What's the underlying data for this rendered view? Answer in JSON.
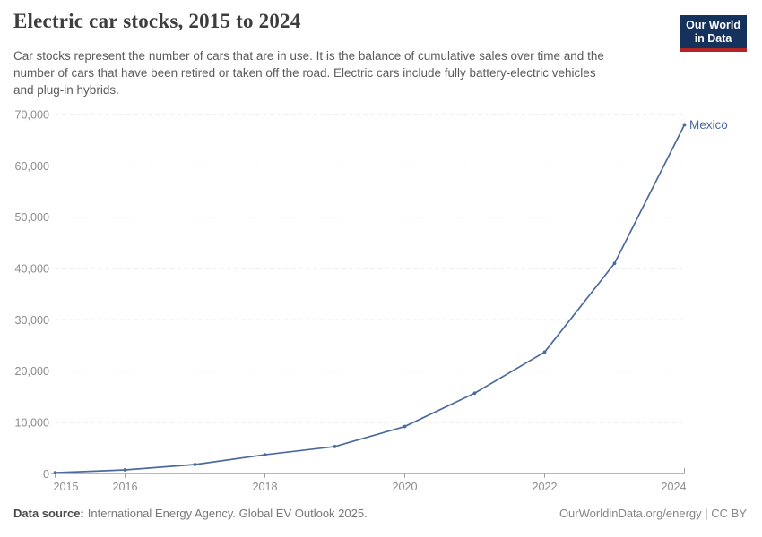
{
  "header": {
    "title": "Electric car stocks, 2015 to 2024",
    "subtitle_lines": [
      "Car stocks represent the number of cars that are in use. It is the balance of cumulative sales over time and the",
      "number of cars that have been retired or taken off the road. Electric cars include fully battery-electric vehicles",
      "and plug-in hybrids."
    ],
    "logo": {
      "line1": "Our World",
      "line2": "in Data"
    }
  },
  "chart_data": {
    "type": "line",
    "title": "Electric car stocks, 2015 to 2024",
    "x": [
      2015,
      2016,
      2017,
      2018,
      2019,
      2020,
      2021,
      2022,
      2023,
      2024
    ],
    "series": [
      {
        "name": "Mexico",
        "color": "#4C6A9C",
        "values": [
          200,
          750,
          1800,
          3700,
          5300,
          9200,
          15700,
          23700,
          41000,
          68000
        ]
      }
    ],
    "xlabel": "",
    "ylabel": "",
    "xlim": [
      2015,
      2024
    ],
    "ylim": [
      0,
      70000
    ],
    "yticks": [
      0,
      10000,
      20000,
      30000,
      40000,
      50000,
      60000,
      70000
    ],
    "ytick_labels": [
      "0",
      "10,000",
      "20,000",
      "30,000",
      "40,000",
      "50,000",
      "60,000",
      "70,000"
    ],
    "xtick_years": [
      2015,
      2016,
      2018,
      2020,
      2022,
      2024
    ],
    "grid": "horizontal-dashed",
    "legend_position": "end-of-line-label",
    "entity_label": "Mexico"
  },
  "footer": {
    "datasource_label": "Data source:",
    "datasource_text": "International Energy Agency. Global EV Outlook 2025.",
    "rights": "OurWorldinData.org/energy | CC BY"
  },
  "colors": {
    "series_line": "#4C6A9C",
    "logo_navy": "#14325c",
    "logo_red": "#b52425",
    "gridline": "#dcdcdc",
    "axis": "#a1a1a1",
    "tick_label": "#8c8c8c",
    "title_text": "#3d3d3d",
    "subtitle_text": "#5b5b5b"
  }
}
